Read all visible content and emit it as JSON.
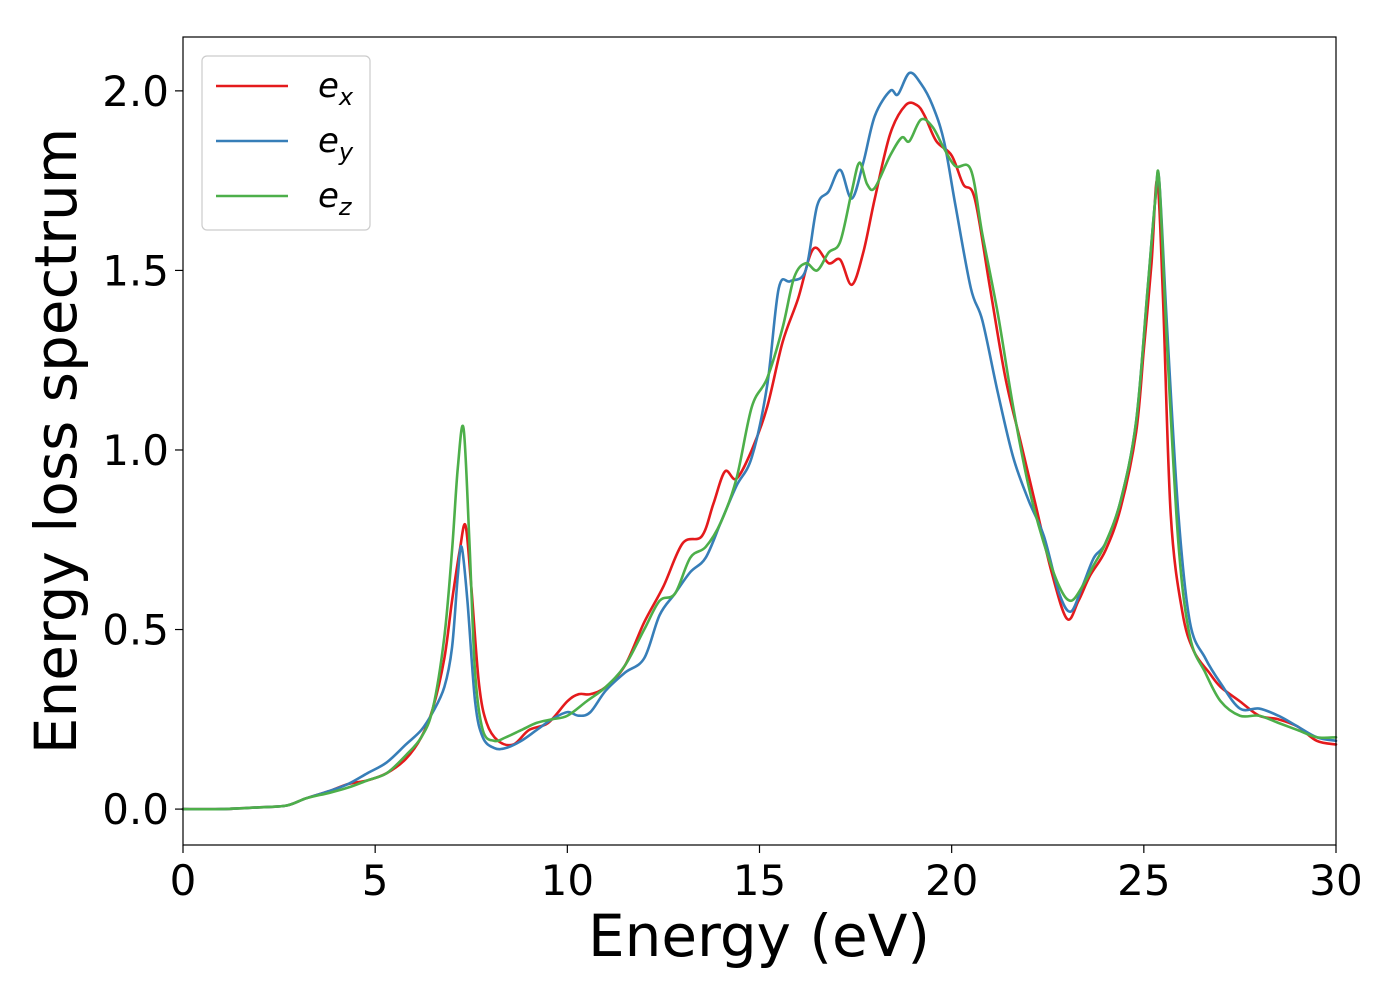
{
  "chart_data": {
    "type": "line",
    "title": "",
    "xlabel": "Energy (eV)",
    "ylabel": "Energy loss spectrum",
    "xlim": [
      0,
      30
    ],
    "ylim": [
      -0.1,
      2.15
    ],
    "xticks": [
      0,
      5,
      10,
      15,
      20,
      25,
      30
    ],
    "xtick_labels": [
      "0",
      "5",
      "10",
      "15",
      "20",
      "25",
      "30"
    ],
    "yticks": [
      0.0,
      0.5,
      1.0,
      1.5,
      2.0
    ],
    "ytick_labels": [
      "0.0",
      "0.5",
      "1.0",
      "1.5",
      "2.0"
    ],
    "grid": false,
    "legend_position": "top-left",
    "series": [
      {
        "name": "e_x",
        "label_base": "e",
        "label_sub": "x",
        "color": "#e41a1c",
        "x": [
          0,
          1,
          2,
          2.7,
          3.2,
          3.8,
          4.3,
          4.8,
          5.3,
          5.8,
          6.2,
          6.5,
          6.8,
          7.0,
          7.2,
          7.35,
          7.5,
          7.7,
          7.9,
          8.2,
          8.6,
          9.0,
          9.5,
          10.0,
          10.3,
          10.6,
          11.0,
          11.5,
          12.0,
          12.5,
          13.0,
          13.5,
          13.8,
          14.1,
          14.4,
          14.8,
          15.2,
          15.6,
          16.0,
          16.4,
          16.8,
          17.1,
          17.4,
          17.7,
          18.0,
          18.4,
          18.8,
          19.1,
          19.3,
          19.6,
          20.0,
          20.3,
          20.6,
          21.0,
          21.4,
          21.8,
          22.2,
          22.6,
          23.0,
          23.3,
          23.6,
          24.0,
          24.4,
          24.8,
          25.0,
          25.2,
          25.35,
          25.5,
          25.7,
          26.0,
          26.3,
          26.7,
          27.0,
          27.5,
          28.0,
          28.5,
          29.0,
          29.5,
          30.0
        ],
        "y": [
          0.0,
          0.0,
          0.005,
          0.01,
          0.03,
          0.05,
          0.07,
          0.08,
          0.1,
          0.14,
          0.2,
          0.28,
          0.42,
          0.58,
          0.72,
          0.79,
          0.62,
          0.35,
          0.24,
          0.19,
          0.18,
          0.22,
          0.24,
          0.3,
          0.32,
          0.32,
          0.34,
          0.4,
          0.52,
          0.62,
          0.74,
          0.76,
          0.85,
          0.94,
          0.92,
          1.0,
          1.12,
          1.3,
          1.42,
          1.56,
          1.52,
          1.53,
          1.46,
          1.55,
          1.7,
          1.88,
          1.96,
          1.96,
          1.93,
          1.86,
          1.82,
          1.74,
          1.7,
          1.45,
          1.2,
          1.02,
          0.84,
          0.66,
          0.53,
          0.58,
          0.65,
          0.72,
          0.84,
          1.05,
          1.28,
          1.52,
          1.75,
          1.42,
          0.82,
          0.55,
          0.44,
          0.38,
          0.34,
          0.3,
          0.26,
          0.25,
          0.23,
          0.19,
          0.18
        ]
      },
      {
        "name": "e_y",
        "label_base": "e",
        "label_sub": "y",
        "color": "#377eb8",
        "x": [
          0,
          1,
          2,
          2.7,
          3.2,
          3.8,
          4.3,
          4.8,
          5.3,
          5.8,
          6.2,
          6.5,
          6.8,
          7.0,
          7.15,
          7.25,
          7.4,
          7.6,
          7.8,
          8.1,
          8.4,
          8.8,
          9.2,
          9.6,
          10.0,
          10.3,
          10.6,
          11.0,
          11.5,
          12.0,
          12.4,
          12.8,
          13.2,
          13.6,
          14.0,
          14.4,
          14.8,
          15.2,
          15.5,
          15.8,
          16.2,
          16.5,
          16.8,
          17.1,
          17.4,
          17.7,
          18.0,
          18.4,
          18.6,
          18.9,
          19.2,
          19.5,
          19.8,
          20.1,
          20.5,
          20.8,
          21.2,
          21.6,
          22.0,
          22.4,
          22.8,
          23.1,
          23.4,
          23.7,
          24.0,
          24.4,
          24.8,
          25.1,
          25.3,
          25.4,
          25.6,
          25.9,
          26.2,
          26.6,
          27.0,
          27.5,
          28.0,
          28.5,
          29.0,
          29.5,
          30.0
        ],
        "y": [
          0.0,
          0.0,
          0.005,
          0.01,
          0.03,
          0.05,
          0.07,
          0.1,
          0.13,
          0.18,
          0.22,
          0.27,
          0.34,
          0.45,
          0.65,
          0.73,
          0.58,
          0.3,
          0.2,
          0.17,
          0.17,
          0.19,
          0.22,
          0.25,
          0.27,
          0.26,
          0.27,
          0.33,
          0.38,
          0.42,
          0.54,
          0.6,
          0.66,
          0.7,
          0.8,
          0.9,
          0.98,
          1.18,
          1.45,
          1.47,
          1.5,
          1.68,
          1.72,
          1.78,
          1.7,
          1.8,
          1.93,
          2.0,
          1.99,
          2.05,
          2.02,
          1.96,
          1.86,
          1.68,
          1.45,
          1.36,
          1.16,
          0.98,
          0.86,
          0.76,
          0.6,
          0.55,
          0.62,
          0.7,
          0.74,
          0.86,
          1.08,
          1.45,
          1.7,
          1.75,
          1.35,
          0.82,
          0.52,
          0.42,
          0.35,
          0.28,
          0.28,
          0.26,
          0.23,
          0.2,
          0.19
        ]
      },
      {
        "name": "e_z",
        "label_base": "e",
        "label_sub": "z",
        "color": "#4daf4a",
        "x": [
          0,
          1,
          2,
          2.7,
          3.2,
          3.8,
          4.3,
          4.8,
          5.3,
          5.8,
          6.2,
          6.5,
          6.8,
          7.0,
          7.15,
          7.3,
          7.45,
          7.6,
          7.8,
          8.1,
          8.4,
          8.8,
          9.2,
          9.6,
          10.0,
          10.5,
          11.0,
          11.5,
          12.0,
          12.4,
          12.8,
          13.2,
          13.6,
          14.0,
          14.4,
          14.8,
          15.2,
          15.6,
          15.9,
          16.2,
          16.5,
          16.8,
          17.1,
          17.4,
          17.6,
          17.8,
          18.0,
          18.4,
          18.7,
          18.9,
          19.2,
          19.5,
          19.8,
          20.1,
          20.5,
          20.8,
          21.2,
          21.6,
          22.0,
          22.4,
          22.8,
          23.1,
          23.4,
          23.7,
          24.0,
          24.4,
          24.8,
          25.1,
          25.3,
          25.4,
          25.6,
          25.9,
          26.2,
          26.6,
          27.0,
          27.5,
          28.0,
          28.5,
          29.0,
          29.5,
          30.0
        ],
        "y": [
          0.0,
          0.0,
          0.005,
          0.01,
          0.03,
          0.045,
          0.06,
          0.08,
          0.1,
          0.15,
          0.2,
          0.28,
          0.48,
          0.72,
          0.95,
          1.06,
          0.75,
          0.38,
          0.22,
          0.19,
          0.2,
          0.22,
          0.24,
          0.25,
          0.26,
          0.3,
          0.34,
          0.4,
          0.5,
          0.58,
          0.6,
          0.7,
          0.73,
          0.8,
          0.92,
          1.12,
          1.2,
          1.34,
          1.48,
          1.52,
          1.5,
          1.55,
          1.58,
          1.72,
          1.8,
          1.74,
          1.73,
          1.82,
          1.87,
          1.86,
          1.92,
          1.9,
          1.84,
          1.79,
          1.78,
          1.6,
          1.38,
          1.12,
          0.9,
          0.74,
          0.62,
          0.58,
          0.62,
          0.68,
          0.74,
          0.86,
          1.08,
          1.45,
          1.7,
          1.75,
          1.3,
          0.74,
          0.48,
          0.38,
          0.3,
          0.26,
          0.26,
          0.24,
          0.22,
          0.2,
          0.2
        ]
      }
    ]
  }
}
